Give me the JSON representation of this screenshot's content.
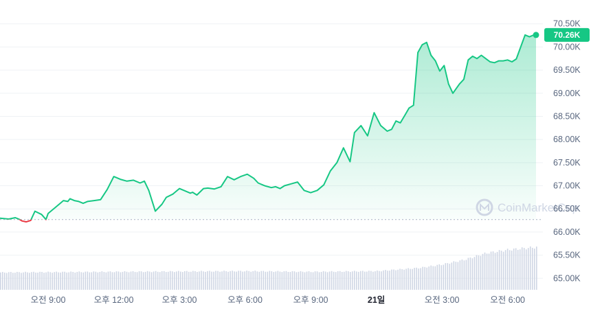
{
  "chart_data": {
    "type": "area",
    "title": "",
    "watermark": "CoinMarketCap",
    "colors": {
      "up": "#16c784",
      "down": "#ea3943",
      "grid": "#eff2f5",
      "baseline": "#a6b0c3",
      "volume": "#cfd6e4"
    },
    "y_axis": {
      "min": 64.9,
      "max": 70.6,
      "ticks": [
        {
          "value": 65.0,
          "label": "65.00K"
        },
        {
          "value": 65.5,
          "label": "65.50K"
        },
        {
          "value": 66.0,
          "label": "66.00K"
        },
        {
          "value": 66.5,
          "label": "66.50K"
        },
        {
          "value": 67.0,
          "label": "67.00K"
        },
        {
          "value": 67.5,
          "label": "67.50K"
        },
        {
          "value": 68.0,
          "label": "68.00K"
        },
        {
          "value": 68.5,
          "label": "68.50K"
        },
        {
          "value": 69.0,
          "label": "69.00K"
        },
        {
          "value": 69.5,
          "label": "69.50K"
        },
        {
          "value": 70.0,
          "label": "70.00K"
        },
        {
          "value": 70.5,
          "label": "70.50K"
        }
      ]
    },
    "x_axis": {
      "min": 6.8,
      "max": 31.3,
      "ticks": [
        {
          "value": 9,
          "label": "오전 9:00",
          "bold": false
        },
        {
          "value": 12,
          "label": "오후 12:00",
          "bold": false
        },
        {
          "value": 15,
          "label": "오후 3:00",
          "bold": false
        },
        {
          "value": 18,
          "label": "오후 6:00",
          "bold": false
        },
        {
          "value": 21,
          "label": "오후 9:00",
          "bold": false
        },
        {
          "value": 24,
          "label": "21일",
          "bold": true
        },
        {
          "value": 27,
          "label": "오전 3:00",
          "bold": false
        },
        {
          "value": 30,
          "label": "오전 6:00",
          "bold": false
        }
      ]
    },
    "baseline_value": 66.27,
    "current": {
      "value": 70.26,
      "label": "70.26K"
    },
    "series": [
      {
        "x": [
          6.8,
          7.2,
          7.5,
          7.7,
          7.8,
          8.0,
          8.2,
          8.4,
          8.7,
          8.9,
          9.0,
          9.3,
          9.5,
          9.7,
          9.9,
          10.0,
          10.2,
          10.4,
          10.6,
          10.8,
          11.1,
          11.4,
          11.7,
          12.0,
          12.3,
          12.6,
          12.9,
          13.2,
          13.4,
          13.6,
          13.9,
          14.2,
          14.4,
          14.7,
          15.0,
          15.3,
          15.5,
          15.6,
          15.8,
          16.1,
          16.3,
          16.6,
          16.9,
          17.2,
          17.5,
          17.8,
          18.1,
          18.4,
          18.6,
          18.9,
          19.2,
          19.4,
          19.6,
          19.8,
          20.1,
          20.4,
          20.7,
          21.0,
          21.3,
          21.6,
          21.9,
          22.2,
          22.5,
          22.8,
          23.0,
          23.3,
          23.6,
          23.9,
          24.2,
          24.5,
          24.7,
          24.9,
          25.1,
          25.3,
          25.5,
          25.7,
          25.9,
          26.1,
          26.3,
          26.5,
          26.7,
          26.9,
          27.1,
          27.3,
          27.5,
          27.8,
          28.0,
          28.2,
          28.4,
          28.6,
          28.8,
          29.0,
          29.2,
          29.4,
          29.6,
          29.8,
          30.0,
          30.2,
          30.4,
          30.6,
          30.8,
          31.0,
          31.2,
          31.3
        ],
        "values": [
          66.3,
          66.28,
          66.31,
          66.27,
          66.24,
          66.22,
          66.25,
          66.45,
          66.38,
          66.27,
          66.4,
          66.52,
          66.6,
          66.68,
          66.66,
          66.72,
          66.68,
          66.66,
          66.62,
          66.66,
          66.68,
          66.7,
          66.92,
          67.2,
          67.14,
          67.1,
          67.12,
          67.06,
          67.1,
          66.9,
          66.45,
          66.6,
          66.75,
          66.82,
          66.94,
          66.88,
          66.84,
          66.86,
          66.8,
          66.94,
          66.95,
          66.93,
          66.98,
          67.2,
          67.13,
          67.2,
          67.25,
          67.16,
          67.06,
          67.0,
          66.96,
          66.98,
          66.94,
          67.0,
          67.04,
          67.08,
          66.9,
          66.85,
          66.9,
          67.02,
          67.32,
          67.5,
          67.82,
          67.52,
          68.15,
          68.3,
          68.08,
          68.58,
          68.3,
          68.18,
          68.22,
          68.4,
          68.36,
          68.52,
          68.68,
          68.74,
          69.88,
          70.05,
          70.1,
          69.82,
          69.7,
          69.48,
          69.6,
          69.2,
          69.0,
          69.2,
          69.3,
          69.72,
          69.8,
          69.75,
          69.82,
          69.75,
          69.68,
          69.66,
          69.7,
          69.7,
          69.72,
          69.68,
          69.74,
          70.0,
          70.26,
          70.22,
          70.26,
          70.26
        ]
      }
    ],
    "volume": {
      "x": [
        6.8,
        12.0,
        18.0,
        21.0,
        24.0,
        26.0,
        27.0,
        28.0,
        29.0,
        30.0,
        31.3
      ],
      "values": [
        0.26,
        0.27,
        0.28,
        0.27,
        0.28,
        0.33,
        0.38,
        0.45,
        0.55,
        0.6,
        0.64
      ]
    }
  }
}
